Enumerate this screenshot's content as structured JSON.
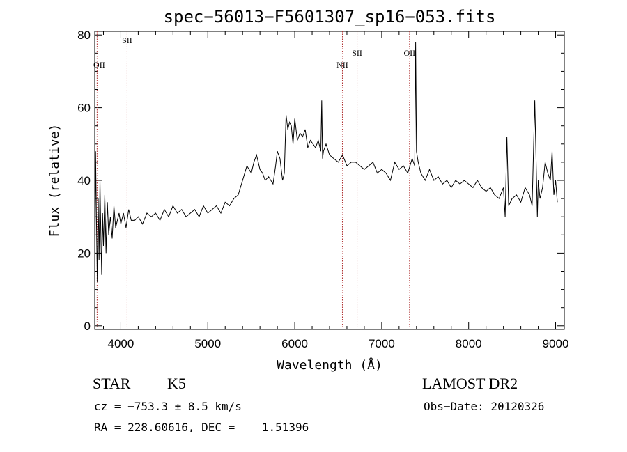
{
  "chart_data": {
    "type": "line",
    "title": "spec−56013−F5601307_sp16−053.fits",
    "xlabel": "Wavelength (Å)",
    "ylabel": "Flux (relative)",
    "xlim": [
      3700,
      9100
    ],
    "ylim": [
      -1,
      81
    ],
    "xticks": [
      4000,
      5000,
      6000,
      7000,
      8000,
      9000
    ],
    "yticks": [
      0,
      20,
      40,
      60,
      80
    ],
    "grid": false,
    "series": [
      {
        "x": [
          3700,
          3710,
          3720,
          3730,
          3740,
          3750,
          3760,
          3770,
          3780,
          3790,
          3800,
          3815,
          3830,
          3845,
          3860,
          3880,
          3900,
          3920,
          3940,
          3960,
          3980,
          4000,
          4030,
          4060,
          4090,
          4120,
          4160,
          4200,
          4250,
          4300,
          4350,
          4400,
          4450,
          4500,
          4550,
          4600,
          4650,
          4700,
          4750,
          4800,
          4850,
          4900,
          4950,
          5000,
          5050,
          5100,
          5150,
          5200,
          5250,
          5300,
          5350,
          5400,
          5450,
          5500,
          5530,
          5560,
          5580,
          5600,
          5630,
          5660,
          5700,
          5750,
          5780,
          5800,
          5830,
          5860,
          5880,
          5900,
          5920,
          5940,
          5960,
          5980,
          6000,
          6030,
          6060,
          6090,
          6120,
          6150,
          6180,
          6210,
          6240,
          6270,
          6300,
          6310,
          6320,
          6330,
          6360,
          6400,
          6450,
          6500,
          6550,
          6600,
          6650,
          6700,
          6750,
          6800,
          6850,
          6900,
          6950,
          7000,
          7050,
          7100,
          7150,
          7200,
          7250,
          7300,
          7350,
          7380,
          7390,
          7400,
          7420,
          7450,
          7500,
          7550,
          7600,
          7650,
          7700,
          7750,
          7800,
          7850,
          7900,
          7950,
          8000,
          8050,
          8100,
          8150,
          8200,
          8250,
          8300,
          8350,
          8400,
          8420,
          8440,
          8460,
          8500,
          8550,
          8600,
          8650,
          8700,
          8730,
          8760,
          8790,
          8800,
          8820,
          8850,
          8880,
          8910,
          8940,
          8960,
          8980,
          9000,
          9020
        ],
        "y": [
          5,
          48,
          28,
          12,
          35,
          18,
          40,
          26,
          14,
          31,
          22,
          36,
          20,
          34,
          25,
          30,
          24,
          33,
          27,
          29,
          31,
          28,
          31,
          27,
          32,
          29,
          29,
          30,
          28,
          31,
          30,
          31,
          29,
          32,
          30,
          33,
          31,
          32,
          30,
          31,
          32,
          30,
          33,
          31,
          32,
          33,
          31,
          34,
          33,
          35,
          36,
          40,
          44,
          42,
          45,
          47,
          45,
          43,
          42,
          40,
          41,
          39,
          44,
          48,
          46,
          40,
          42,
          58,
          54,
          56,
          55,
          50,
          57,
          51,
          53,
          52,
          54,
          49,
          51,
          50,
          49,
          51,
          48,
          62,
          46,
          48,
          50,
          47,
          46,
          45,
          47,
          44,
          45,
          45,
          44,
          43,
          44,
          45,
          42,
          43,
          42,
          40,
          45,
          43,
          44,
          42,
          46,
          44,
          78,
          48,
          45,
          42,
          40,
          43,
          40,
          41,
          39,
          40,
          38,
          40,
          39,
          40,
          39,
          38,
          40,
          38,
          37,
          38,
          36,
          35,
          38,
          30,
          52,
          33,
          35,
          36,
          34,
          38,
          36,
          33,
          62,
          30,
          40,
          35,
          38,
          45,
          42,
          40,
          48,
          36,
          40,
          34
        ]
      }
    ],
    "lines": [
      {
        "label": "OII",
        "x": 3727
      },
      {
        "label": "SII",
        "x": 4072
      },
      {
        "label": "NII",
        "x": 6548
      },
      {
        "label": "SII",
        "x": 6717
      },
      {
        "label": "OII",
        "x": 7320
      }
    ]
  },
  "info": {
    "object_class": "STAR",
    "subclass": "K5",
    "survey": "LAMOST DR2",
    "cz": "cz = −753.3 ± 8.5 km/s",
    "obs_date": "Obs−Date: 20120326",
    "coords": "RA = 228.60616, DEC =    1.51396"
  }
}
